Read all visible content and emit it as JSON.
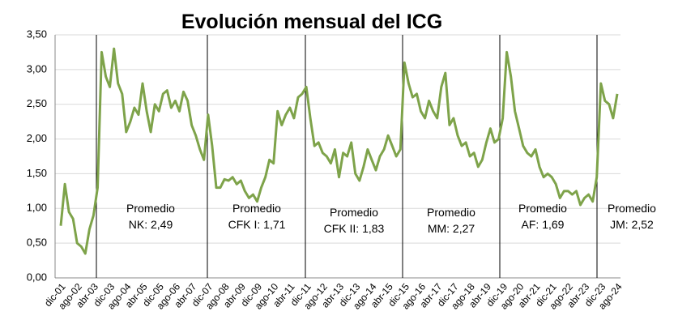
{
  "chart_data": {
    "type": "line",
    "title": "Evolución mensual del ICG",
    "categories": [
      "dic-01",
      null,
      null,
      null,
      "ago-02",
      null,
      null,
      null,
      "abr-03",
      null,
      null,
      null,
      "dic-03",
      null,
      null,
      null,
      "ago-04",
      null,
      null,
      null,
      "abr-05",
      null,
      null,
      null,
      "dic-05",
      null,
      null,
      null,
      "ago-06",
      null,
      null,
      null,
      "abr-07",
      null,
      null,
      null,
      "dic-07",
      null,
      null,
      null,
      "ago-08",
      null,
      null,
      null,
      "abr-09",
      null,
      null,
      null,
      "dic-09",
      null,
      null,
      null,
      "ago-10",
      null,
      null,
      null,
      "abr-11",
      null,
      null,
      null,
      "dic-11",
      null,
      null,
      null,
      "ago-12",
      null,
      null,
      null,
      "abr-13",
      null,
      null,
      null,
      "dic-13",
      null,
      null,
      null,
      "ago-14",
      null,
      null,
      null,
      "abr-15",
      null,
      null,
      null,
      "dic-15",
      null,
      null,
      null,
      "ago-16",
      null,
      null,
      null,
      "abr-17",
      null,
      null,
      null,
      "dic-17",
      null,
      null,
      null,
      "ago-18",
      null,
      null,
      null,
      "abr-19",
      null,
      null,
      null,
      "dic-19",
      null,
      null,
      null,
      "ago-20",
      null,
      null,
      null,
      "abr-21",
      null,
      null,
      null,
      "dic-21",
      null,
      null,
      null,
      "ago-22",
      null,
      null,
      null,
      "abr-23",
      null,
      null,
      null,
      "dic-23",
      null,
      null,
      null,
      "ago-24"
    ],
    "values": [
      0.75,
      1.35,
      0.95,
      0.85,
      0.5,
      0.45,
      0.35,
      0.7,
      0.9,
      1.3,
      3.25,
      2.9,
      2.75,
      3.3,
      2.8,
      2.65,
      2.1,
      2.25,
      2.45,
      2.35,
      2.8,
      2.4,
      2.1,
      2.5,
      2.4,
      2.65,
      2.7,
      2.45,
      2.55,
      2.4,
      2.68,
      2.55,
      2.2,
      2.05,
      1.85,
      1.7,
      2.35,
      1.9,
      1.3,
      1.3,
      1.42,
      1.4,
      1.45,
      1.35,
      1.4,
      1.25,
      1.15,
      1.2,
      1.1,
      1.3,
      1.45,
      1.7,
      1.65,
      2.4,
      2.2,
      2.35,
      2.45,
      2.3,
      2.6,
      2.65,
      2.75,
      2.3,
      1.9,
      1.95,
      1.8,
      1.75,
      1.65,
      1.85,
      1.45,
      1.8,
      1.75,
      1.95,
      1.5,
      1.4,
      1.6,
      1.85,
      1.7,
      1.55,
      1.75,
      1.85,
      2.05,
      1.9,
      1.75,
      1.85,
      3.1,
      2.8,
      2.6,
      2.65,
      2.4,
      2.3,
      2.55,
      2.4,
      2.3,
      2.75,
      2.95,
      2.2,
      2.3,
      2.05,
      1.9,
      1.95,
      1.75,
      1.8,
      1.6,
      1.7,
      1.95,
      2.15,
      1.95,
      2.0,
      2.3,
      3.25,
      2.9,
      2.4,
      2.15,
      1.9,
      1.8,
      1.75,
      1.85,
      1.6,
      1.45,
      1.5,
      1.45,
      1.35,
      1.15,
      1.25,
      1.25,
      1.2,
      1.25,
      1.05,
      1.15,
      1.2,
      1.1,
      1.45,
      2.8,
      2.55,
      2.5,
      2.3,
      2.65
    ],
    "color": "#7ea34a",
    "ylim": [
      0,
      3.5
    ],
    "yticks": [
      {
        "value": 0,
        "label": "0,00"
      },
      {
        "value": 0.5,
        "label": "0,50"
      },
      {
        "value": 1,
        "label": "1,00"
      },
      {
        "value": 1.5,
        "label": "1,50"
      },
      {
        "value": 2,
        "label": "2,00"
      },
      {
        "value": 2.5,
        "label": "2,50"
      },
      {
        "value": 3,
        "label": "3,00"
      },
      {
        "value": 3.5,
        "label": "3,50"
      }
    ],
    "grid": true,
    "annotations": [
      {
        "title": "Promedio",
        "text": "NK: 2,49"
      },
      {
        "title": "Promedio",
        "text": "CFK I: 1,71"
      },
      {
        "title": "Promedio",
        "text": "CFK II: 1,83"
      },
      {
        "title": "Promedio",
        "text": "MM: 2,27"
      },
      {
        "title": "Promedio",
        "text": "AF: 1,69"
      },
      {
        "title": "Promedio",
        "text": "JM: 2,52"
      }
    ]
  }
}
